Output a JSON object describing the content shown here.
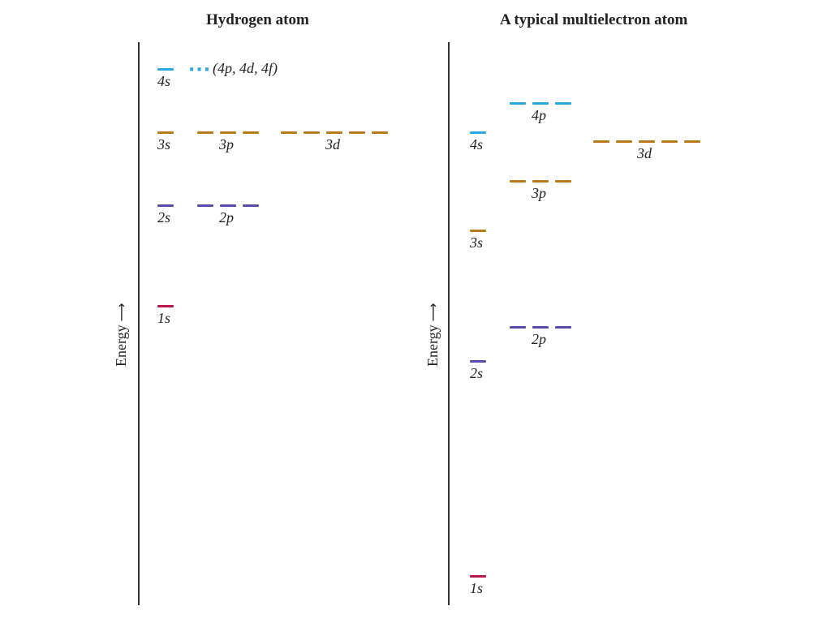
{
  "colors": {
    "n1": "#b8184a",
    "n2": "#5b4aa8",
    "n3": "#b87a1a",
    "n4": "#2aa8e0"
  },
  "hydrogen": {
    "title": "Hydrogen atom",
    "axis_label": "Energy",
    "labels": {
      "s4": "4s",
      "s3": "3s",
      "p3": "3p",
      "d3": "3d",
      "s2": "2s",
      "p2": "2p",
      "s1": "1s",
      "higher": "(4p, 4d, 4f)"
    }
  },
  "multielectron": {
    "title": "A typical multielectron atom",
    "axis_label": "Energy",
    "labels": {
      "p4": "4p",
      "s4": "4s",
      "d3": "3d",
      "p3": "3p",
      "s3": "3s",
      "p2": "2p",
      "s2": "2s",
      "s1": "1s"
    }
  }
}
